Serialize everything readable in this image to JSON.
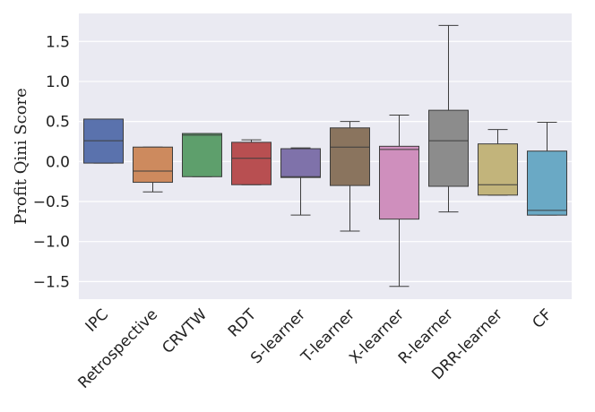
{
  "chart_data": {
    "type": "box",
    "title": "",
    "xlabel": "",
    "ylabel": "Profit Qini Score",
    "ylim": [
      -1.72,
      1.85
    ],
    "yticks": [
      1.5,
      1.0,
      0.5,
      0.0,
      -0.5,
      -1.0,
      -1.5
    ],
    "ytick_labels": [
      "1.5",
      "1.0",
      "0.5",
      "0.0",
      "−0.5",
      "−1.0",
      "−1.5"
    ],
    "grid": true,
    "categories": [
      "IPC",
      "Retrospective",
      "CRVTW",
      "RDT",
      "S-learner",
      "T-learner",
      "X-learner",
      "R-learner",
      "DRR-learner",
      "CF"
    ],
    "boxes": [
      {
        "category": "IPC",
        "whisker_low": -0.02,
        "q1": -0.02,
        "median": 0.26,
        "q3": 0.53,
        "whisker_high": 0.53,
        "color": "#5a72ad"
      },
      {
        "category": "Retrospective",
        "whisker_low": -0.38,
        "q1": -0.26,
        "median": -0.12,
        "q3": 0.18,
        "whisker_high": 0.18,
        "color": "#cd8a5e"
      },
      {
        "category": "CRVTW",
        "whisker_low": -0.19,
        "q1": -0.19,
        "median": 0.33,
        "q3": 0.35,
        "whisker_high": 0.35,
        "color": "#5e9f6c"
      },
      {
        "category": "RDT",
        "whisker_low": -0.29,
        "q1": -0.29,
        "median": 0.04,
        "q3": 0.24,
        "whisker_high": 0.27,
        "color": "#b84f51"
      },
      {
        "category": "S-learner",
        "whisker_low": -0.67,
        "q1": -0.2,
        "median": -0.19,
        "q3": 0.16,
        "whisker_high": 0.17,
        "color": "#7f72aa"
      },
      {
        "category": "T-learner",
        "whisker_low": -0.87,
        "q1": -0.3,
        "median": 0.18,
        "q3": 0.42,
        "whisker_high": 0.5,
        "color": "#8a745e"
      },
      {
        "category": "X-learner",
        "whisker_low": -1.56,
        "q1": -0.72,
        "median": 0.15,
        "q3": 0.19,
        "whisker_high": 0.58,
        "color": "#cf8fbd"
      },
      {
        "category": "R-learner",
        "whisker_low": -0.63,
        "q1": -0.31,
        "median": 0.26,
        "q3": 0.64,
        "whisker_high": 1.7,
        "color": "#8c8c8c"
      },
      {
        "category": "DRR-learner",
        "whisker_low": -0.42,
        "q1": -0.42,
        "median": -0.29,
        "q3": 0.22,
        "whisker_high": 0.4,
        "color": "#c2b47b"
      },
      {
        "category": "CF",
        "whisker_low": -0.67,
        "q1": -0.67,
        "median": -0.61,
        "q3": 0.13,
        "whisker_high": 0.49,
        "color": "#6aa9c5"
      }
    ],
    "colors": {
      "plot_background": "#eaeaf2",
      "grid": "#ffffff",
      "lines": "#3d3d3d"
    }
  }
}
